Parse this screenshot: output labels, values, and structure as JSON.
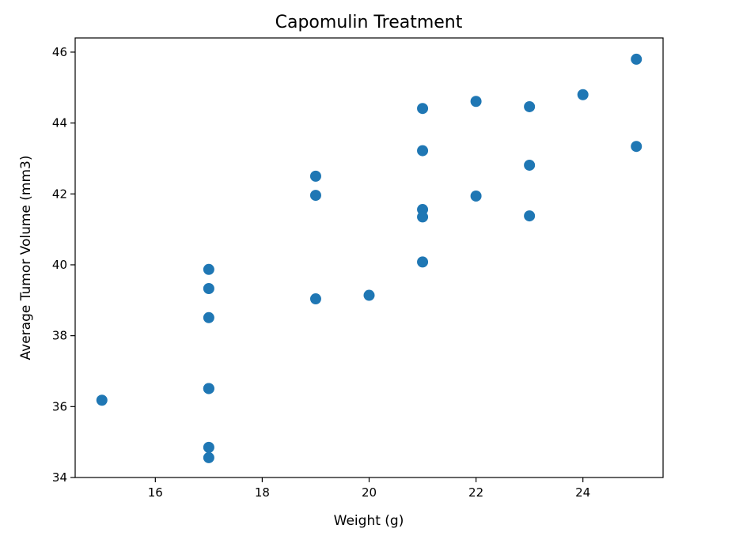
{
  "chart_data": {
    "type": "scatter",
    "title": "Capomulin Treatment",
    "xlabel": "Weight (g)",
    "ylabel": "Average Tumor Volume (mm3)",
    "xlim": [
      14.5,
      25.5
    ],
    "ylim": [
      34,
      46.4
    ],
    "xticks": [
      16,
      18,
      20,
      22,
      24
    ],
    "yticks": [
      34,
      36,
      38,
      40,
      42,
      44,
      46
    ],
    "grid": false,
    "color": "#1f77b4",
    "points": [
      {
        "x": 15,
        "y": 36.18
      },
      {
        "x": 17,
        "y": 39.87
      },
      {
        "x": 17,
        "y": 39.33
      },
      {
        "x": 17,
        "y": 38.51
      },
      {
        "x": 17,
        "y": 36.51
      },
      {
        "x": 17,
        "y": 36.51
      },
      {
        "x": 17,
        "y": 34.85
      },
      {
        "x": 17,
        "y": 34.56
      },
      {
        "x": 19,
        "y": 42.5
      },
      {
        "x": 19,
        "y": 41.96
      },
      {
        "x": 19,
        "y": 39.04
      },
      {
        "x": 20,
        "y": 39.14
      },
      {
        "x": 21,
        "y": 44.41
      },
      {
        "x": 21,
        "y": 43.22
      },
      {
        "x": 21,
        "y": 41.56
      },
      {
        "x": 21,
        "y": 41.35
      },
      {
        "x": 21,
        "y": 40.08
      },
      {
        "x": 22,
        "y": 44.61
      },
      {
        "x": 22,
        "y": 41.94
      },
      {
        "x": 23,
        "y": 44.46
      },
      {
        "x": 23,
        "y": 42.81
      },
      {
        "x": 23,
        "y": 41.38
      },
      {
        "x": 24,
        "y": 44.8
      },
      {
        "x": 25,
        "y": 45.8
      },
      {
        "x": 25,
        "y": 43.34
      }
    ]
  }
}
